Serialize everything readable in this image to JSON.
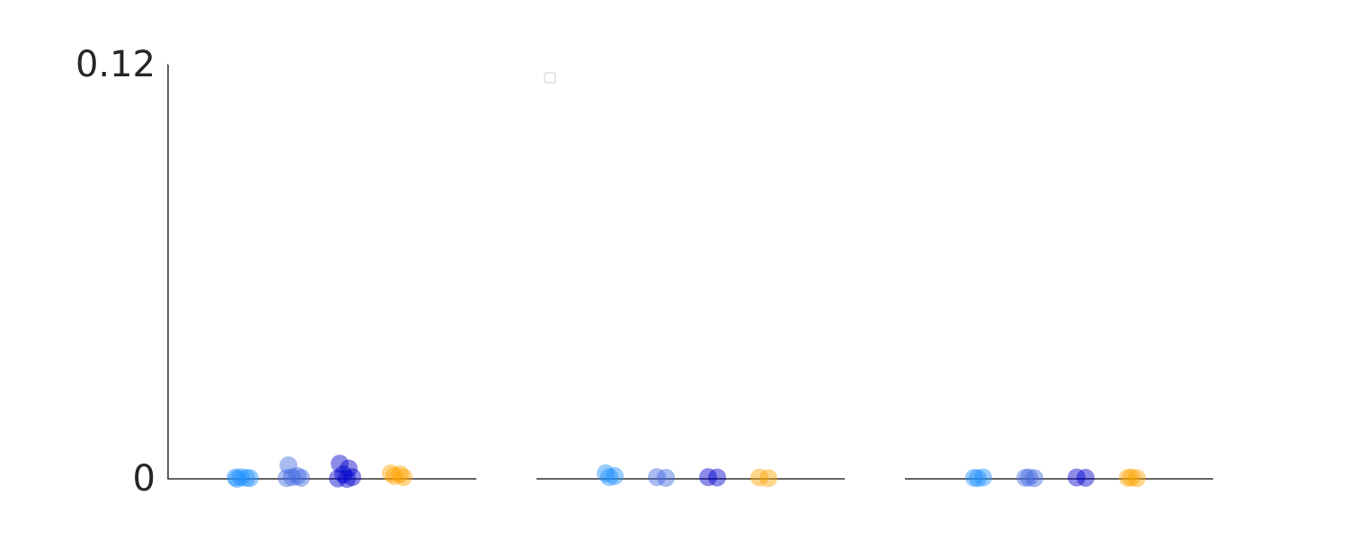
{
  "chart_data": [
    {
      "type": "strip",
      "ylim": [
        0,
        0.12
      ],
      "yticks": [
        0,
        0.12
      ],
      "series": [
        {
          "color": "#1e90ff",
          "values": [
            0.0,
            0.0003,
            0.0005,
            0.0002,
            0.0004
          ]
        },
        {
          "color": "#4169e1",
          "values": [
            0.0039,
            0.0008,
            0.0005,
            0.0003,
            0.0002
          ]
        },
        {
          "color": "#0000cd",
          "values": [
            0.0044,
            0.003,
            0.0013,
            0.0005,
            0.0001,
            0.0
          ]
        },
        {
          "color": "#ffa500",
          "values": [
            0.0016,
            0.0013,
            0.0008,
            0.0005
          ]
        }
      ]
    },
    {
      "type": "strip",
      "ylim": [
        0,
        0.12
      ],
      "series": [
        {
          "color": "#1e90ff",
          "values": [
            0.0016,
            0.0008,
            0.0005
          ]
        },
        {
          "color": "#4169e1",
          "values": [
            0.0005,
            0.0003
          ]
        },
        {
          "color": "#0000cd",
          "values": [
            0.0005,
            0.0004
          ]
        },
        {
          "color": "#ffa500",
          "values": [
            0.0004,
            0.0002
          ]
        }
      ]
    },
    {
      "type": "strip",
      "ylim": [
        0,
        0.12
      ],
      "series": [
        {
          "color": "#1e90ff",
          "values": [
            0.0003,
            0.0004,
            0.0002
          ]
        },
        {
          "color": "#4169e1",
          "values": [
            0.0003,
            0.0002,
            0.0004
          ]
        },
        {
          "color": "#0000cd",
          "values": [
            0.0004,
            0.0003
          ]
        },
        {
          "color": "#ffa500",
          "values": [
            0.0003,
            0.0002,
            0.0004
          ]
        }
      ]
    }
  ]
}
